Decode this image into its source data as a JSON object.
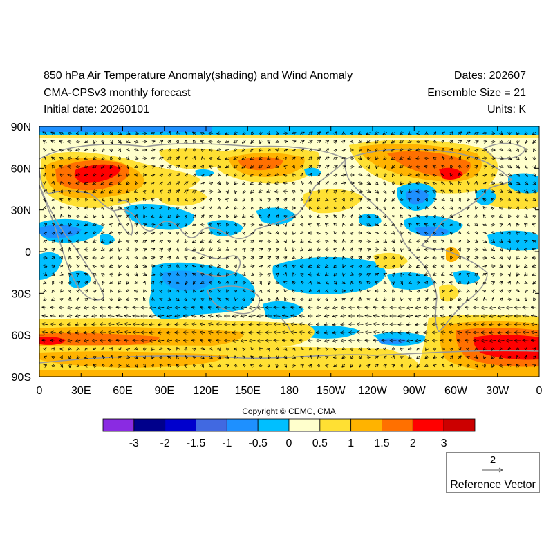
{
  "header": {
    "title_line1": "850 hPa Air Temperature Anomaly(shading) and Wind Anomaly",
    "title_line2": "CMA-CPSv3 monthly forecast",
    "title_line3": "Initial date: 20260101",
    "dates": "Dates: 202607",
    "ensemble": "Ensemble Size = 21",
    "units": "Units: K"
  },
  "map": {
    "lat_labels": [
      "90N",
      "60N",
      "30N",
      "0",
      "30S",
      "60S",
      "90S"
    ],
    "lon_labels": [
      "0",
      "30E",
      "60E",
      "90E",
      "120E",
      "150E",
      "180",
      "150W",
      "120W",
      "90W",
      "60W",
      "30W",
      "0"
    ],
    "background_color": "#ffffcc",
    "coastline_color": "#999999",
    "vector_color": "#000000"
  },
  "copyright": "Copyright © CEMC, CMA",
  "colorbar": {
    "colors": [
      "#8a2be2",
      "#00008b",
      "#0000cd",
      "#4169e1",
      "#1e90ff",
      "#00bfff",
      "#ffffcc",
      "#ffe033",
      "#ffb300",
      "#ff7000",
      "#ff0000",
      "#cc0000"
    ],
    "labels": [
      "-3",
      "-2",
      "-1.5",
      "-1",
      "-0.5",
      "0",
      "0.5",
      "1",
      "1.5",
      "2",
      "3"
    ]
  },
  "reference_vector": {
    "magnitude": "2",
    "label": "Reference Vector"
  }
}
